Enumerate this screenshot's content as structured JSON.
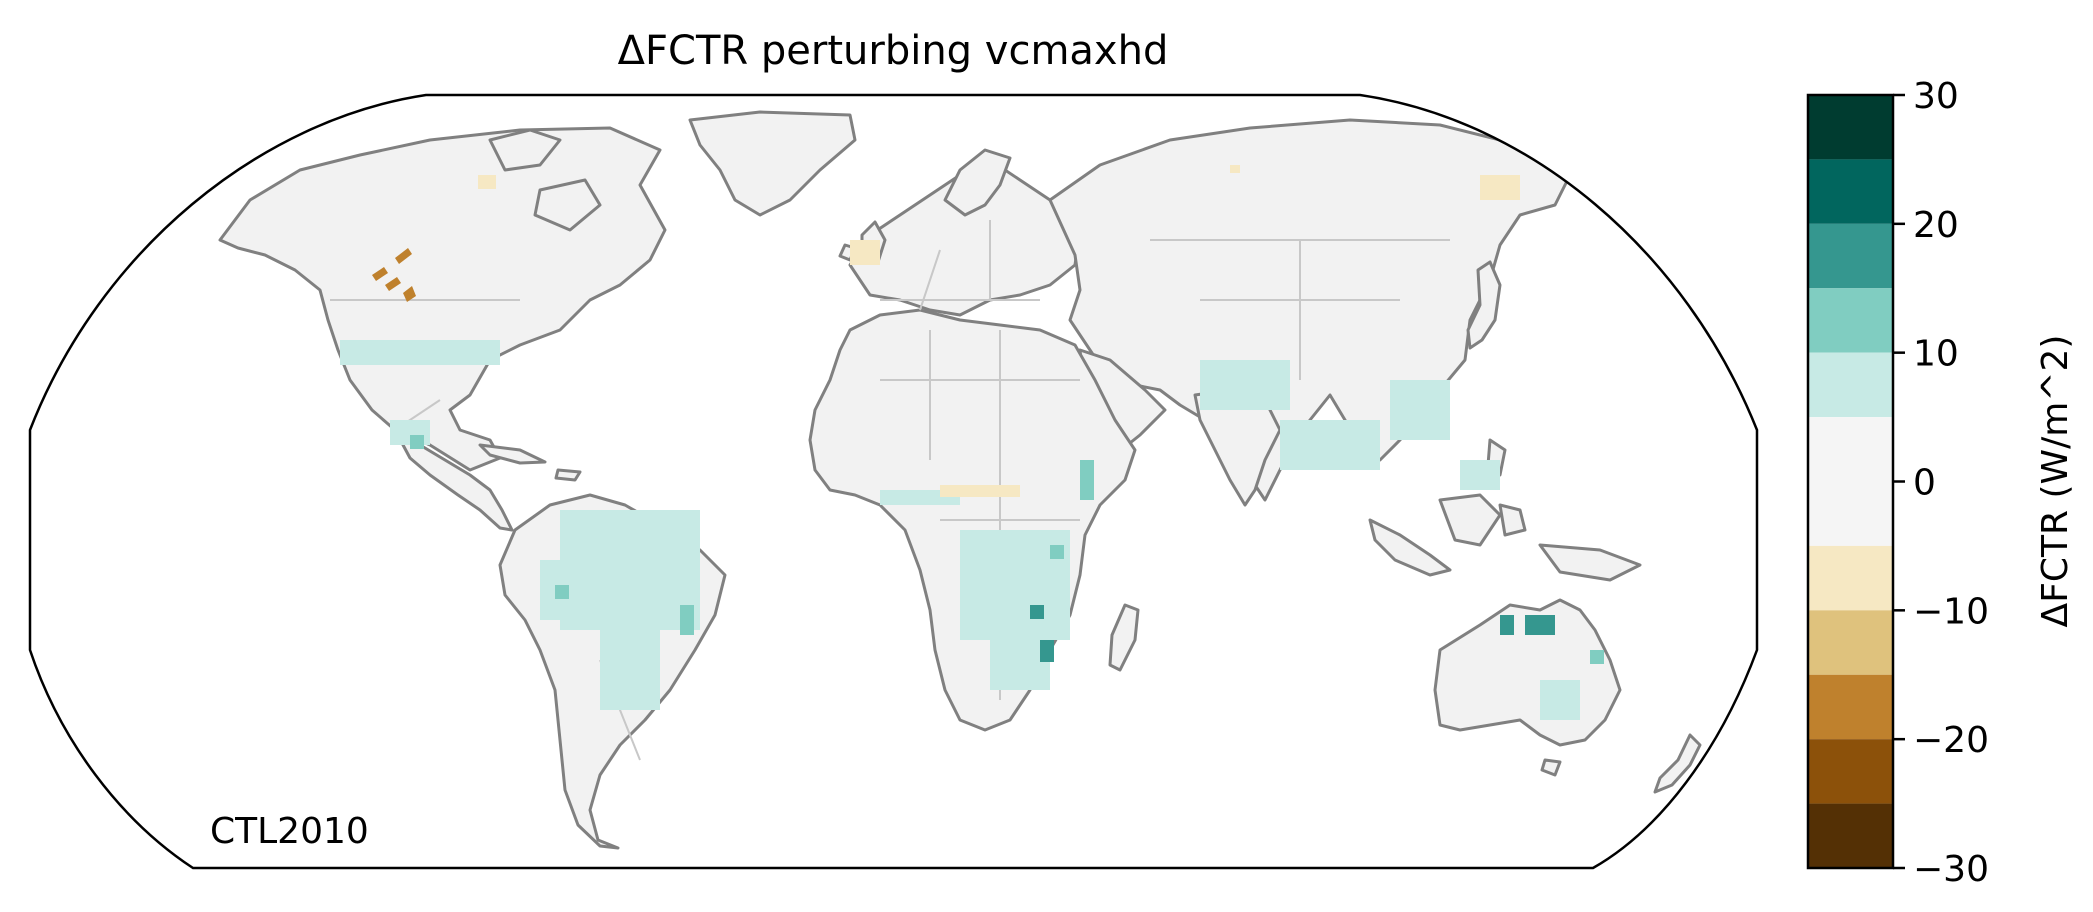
{
  "title": "ΔFCTR perturbing vcmaxhd",
  "map_label": "CTL2010",
  "colorbar": {
    "label": "ΔFCTR (W/m^2)",
    "ticks": [
      "30",
      "20",
      "10",
      "0",
      "−10",
      "−20",
      "−30"
    ],
    "bins": [
      {
        "from": 25,
        "to": 30,
        "color": "#003c30"
      },
      {
        "from": 20,
        "to": 25,
        "color": "#01665e"
      },
      {
        "from": 15,
        "to": 20,
        "color": "#35978f"
      },
      {
        "from": 10,
        "to": 15,
        "color": "#80cdc1"
      },
      {
        "from": 5,
        "to": 10,
        "color": "#c7eae5"
      },
      {
        "from": -5,
        "to": 5,
        "color": "#f5f5f5"
      },
      {
        "from": -10,
        "to": -5,
        "color": "#f6e8c3"
      },
      {
        "from": -15,
        "to": -10,
        "color": "#dfc27d"
      },
      {
        "from": -20,
        "to": -15,
        "color": "#bf812d"
      },
      {
        "from": -25,
        "to": -20,
        "color": "#8c510a"
      },
      {
        "from": -30,
        "to": -25,
        "color": "#543005"
      }
    ],
    "range": [
      -30,
      30
    ]
  },
  "colors": {
    "land": "#f2f2f2",
    "coast": "#808080",
    "borders": "#c8c8c8",
    "frame": "#000000"
  }
}
